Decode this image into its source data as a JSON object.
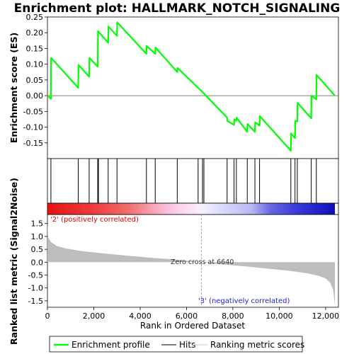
{
  "chart_data": {
    "type": "line",
    "title": "Enrichment plot: HALLMARK_NOTCH_SIGNALING",
    "xlabel": "Rank in Ordered Dataset",
    "es_panel": {
      "ylabel": "Enrichment score (ES)",
      "ylim": [
        -0.2,
        0.25
      ],
      "yticks": [
        "0.25",
        "0.20",
        "0.15",
        "0.10",
        "0.05",
        "0.00",
        "-0.05",
        "-0.10",
        "-0.15"
      ],
      "ytick_values": [
        0.25,
        0.2,
        0.15,
        0.1,
        0.05,
        0.0,
        -0.05,
        -0.1,
        -0.15
      ],
      "series": [
        {
          "name": "Enrichment profile",
          "color": "#00ff00",
          "x": [
            0,
            150,
            160,
            1330,
            1340,
            1800,
            1810,
            2170,
            2180,
            2620,
            2630,
            3000,
            3010,
            4270,
            4280,
            4650,
            4660,
            5600,
            5610,
            6640,
            7750,
            7760,
            8050,
            8060,
            8150,
            8160,
            8620,
            8630,
            8950,
            8960,
            9150,
            9160,
            10500,
            10510,
            10680,
            10690,
            10780,
            10790,
            11380,
            11390,
            11600,
            11610,
            12400
          ],
          "y": [
            0.0,
            -0.01,
            0.12,
            0.025,
            0.098,
            0.06,
            0.12,
            0.092,
            0.205,
            0.168,
            0.22,
            0.19,
            0.233,
            0.133,
            0.158,
            0.133,
            0.153,
            0.075,
            0.088,
            0.015,
            -0.07,
            -0.08,
            -0.093,
            -0.075,
            -0.08,
            -0.07,
            -0.115,
            -0.09,
            -0.115,
            -0.085,
            -0.095,
            -0.065,
            -0.175,
            -0.12,
            -0.135,
            -0.08,
            -0.082,
            -0.023,
            -0.072,
            0.0,
            -0.012,
            0.066,
            0.0
          ]
        }
      ]
    },
    "hits_panel": {
      "legend_label": "Hits",
      "positions": [
        150,
        1330,
        1800,
        2170,
        2200,
        2620,
        3000,
        4270,
        4650,
        5600,
        6500,
        6690,
        6750,
        7750,
        8050,
        8150,
        8620,
        8950,
        9150,
        10500,
        10680,
        10780,
        11380,
        11600
      ]
    },
    "metric_panel": {
      "ylabel": "Ranked list metric (Signal2Noise)",
      "legend_label": "Ranking metric scores",
      "ylim": [
        -1.75,
        1.85
      ],
      "yticks": [
        "1.5",
        "1.0",
        "0.5",
        "0.0",
        "-0.5",
        "-1.0",
        "-1.5"
      ],
      "ytick_values": [
        1.5,
        1.0,
        0.5,
        0.0,
        -0.5,
        -1.0,
        -1.5
      ],
      "curve_x": [
        0,
        40,
        150,
        400,
        800,
        1500,
        2500,
        3500,
        4500,
        5300,
        6000,
        6640,
        7500,
        8500,
        9500,
        10500,
        11200,
        11700,
        12000,
        12200,
        12330,
        12400
      ],
      "curve_y": [
        1.5,
        0.95,
        0.78,
        0.63,
        0.53,
        0.43,
        0.33,
        0.25,
        0.17,
        0.12,
        0.06,
        0.0,
        -0.08,
        -0.16,
        -0.25,
        -0.34,
        -0.43,
        -0.53,
        -0.63,
        -0.8,
        -1.1,
        -1.65
      ],
      "zero_cross_label": "Zero cross at 6640",
      "zero_cross": 6640,
      "pos_label": "'2' (positively correlated)",
      "neg_label": "'3' (negatively correlated)"
    },
    "xlim": [
      0,
      12400
    ],
    "xticks": [
      "0",
      "2,000",
      "4,000",
      "6,000",
      "8,000",
      "10,000",
      "12,000"
    ],
    "xtick_values": [
      0,
      2000,
      4000,
      6000,
      8000,
      10000,
      12000
    ],
    "colorbar": {
      "stops": [
        {
          "x": 0,
          "color": "#e81010"
        },
        {
          "x": 600,
          "color": "#e82020"
        },
        {
          "x": 2000,
          "color": "#ee3c3c"
        },
        {
          "x": 3500,
          "color": "#f26c6c"
        },
        {
          "x": 4600,
          "color": "#f8a8b8"
        },
        {
          "x": 5400,
          "color": "#fcc8e8"
        },
        {
          "x": 6640,
          "color": "#f8f0ff"
        },
        {
          "x": 7600,
          "color": "#d8d8fc"
        },
        {
          "x": 8800,
          "color": "#b8b8f4"
        },
        {
          "x": 9600,
          "color": "#6868e4"
        },
        {
          "x": 10800,
          "color": "#3838d8"
        },
        {
          "x": 11800,
          "color": "#2020c8"
        },
        {
          "x": 12400,
          "color": "#1010b8"
        }
      ]
    },
    "legend_position": "bottom"
  }
}
